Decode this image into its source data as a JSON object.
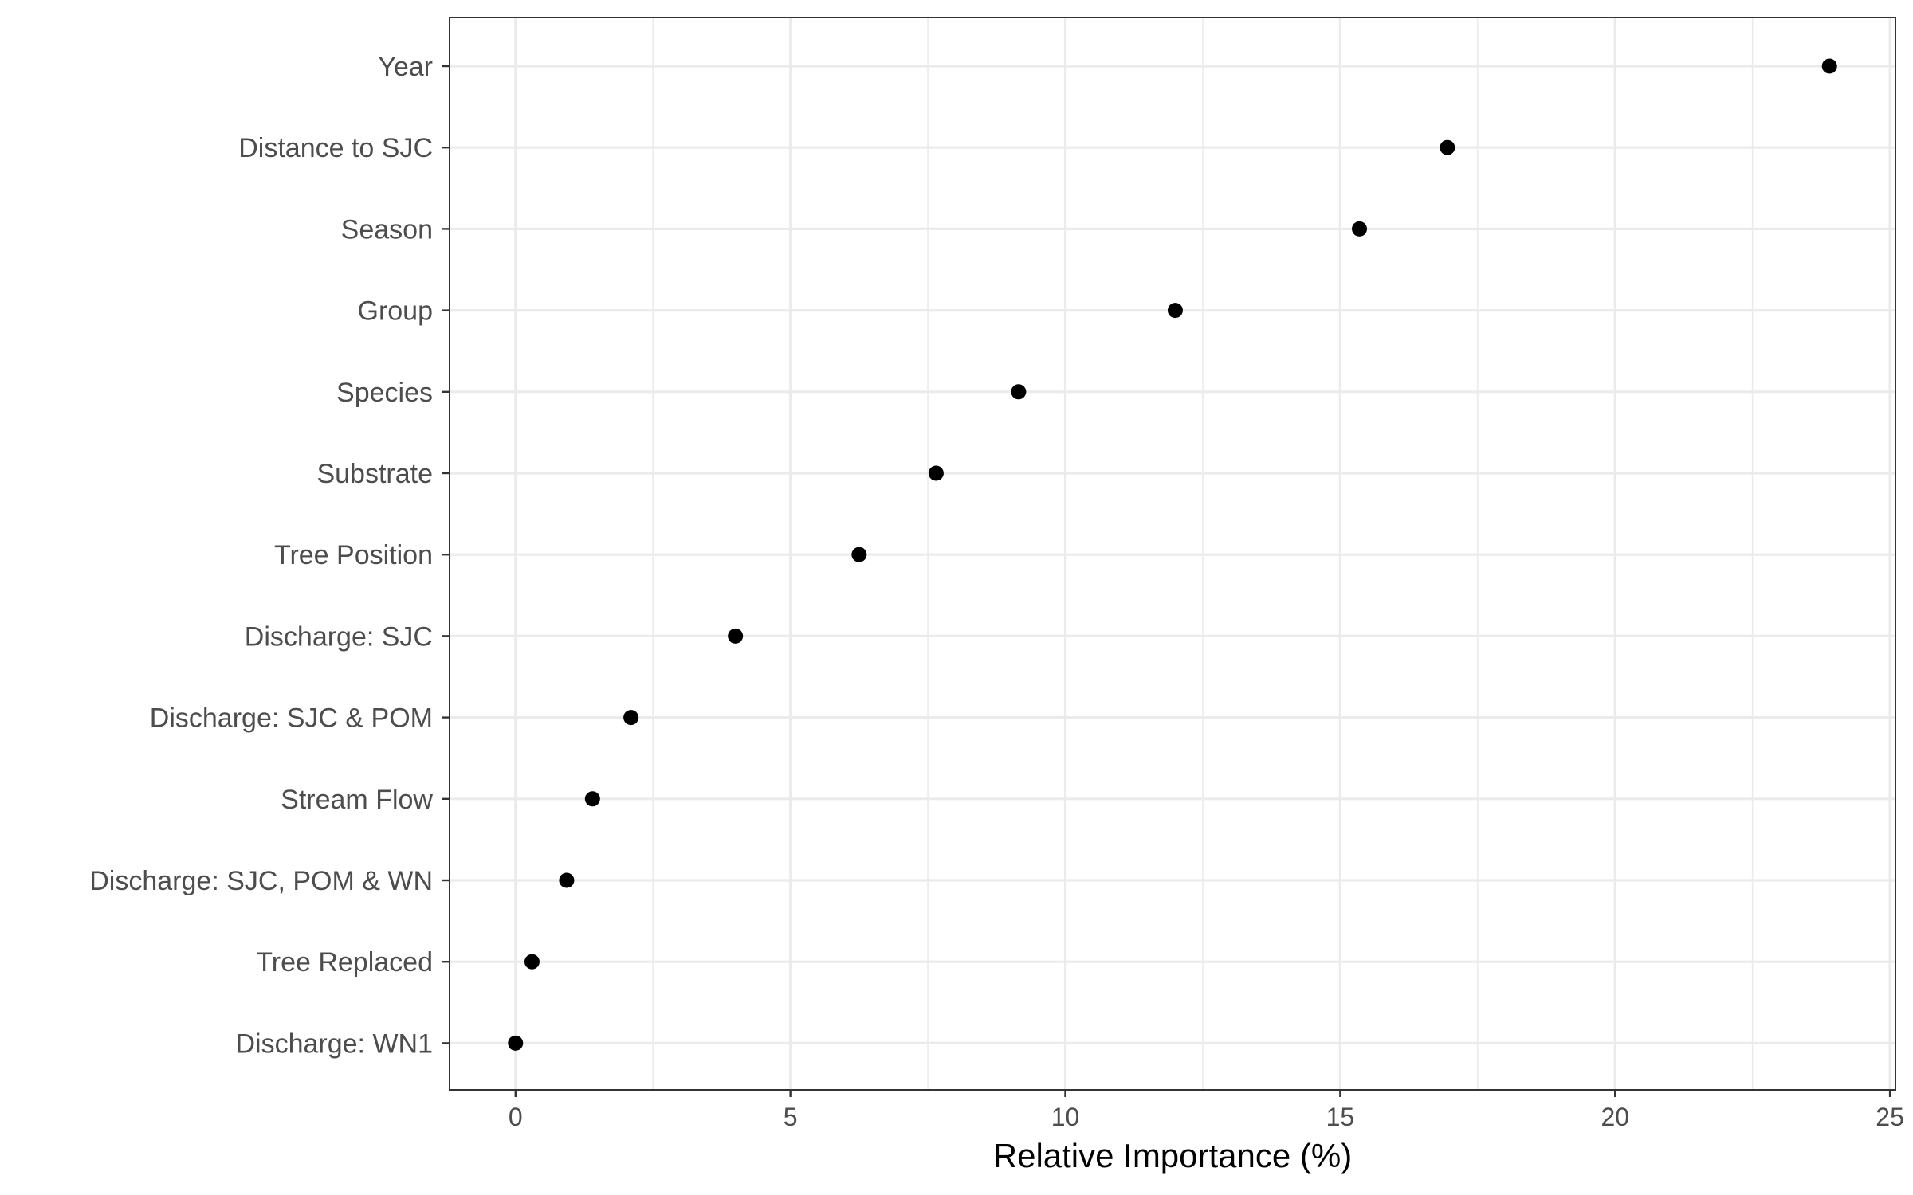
{
  "chart_data": {
    "type": "scatter",
    "title": "",
    "xlabel": "Relative Importance (%)",
    "ylabel": "",
    "xlim": [
      -1.2,
      25.1
    ],
    "x_ticks": [
      0,
      5,
      10,
      15,
      20,
      25
    ],
    "x_tick_labels": [
      "0",
      "5",
      "10",
      "15",
      "20",
      "25"
    ],
    "x_minor_ticks": [
      2.5,
      7.5,
      12.5,
      17.5,
      22.5
    ],
    "grid": true,
    "legend": "none",
    "categories": [
      "Year",
      "Distance to SJC",
      "Season",
      "Group",
      "Species",
      "Substrate",
      "Tree Position",
      "Discharge: SJC",
      "Discharge: SJC & POM",
      "Stream Flow",
      "Discharge: SJC, POM & WN",
      "Tree Replaced",
      "Discharge: WN1"
    ],
    "values": [
      23.9,
      16.95,
      15.35,
      12.0,
      9.15,
      7.65,
      6.25,
      4.0,
      2.1,
      1.4,
      0.93,
      0.3,
      0.0
    ],
    "point_color": "#000000",
    "grid_color": "#ebebeb",
    "panel_border_color": "#333333"
  }
}
